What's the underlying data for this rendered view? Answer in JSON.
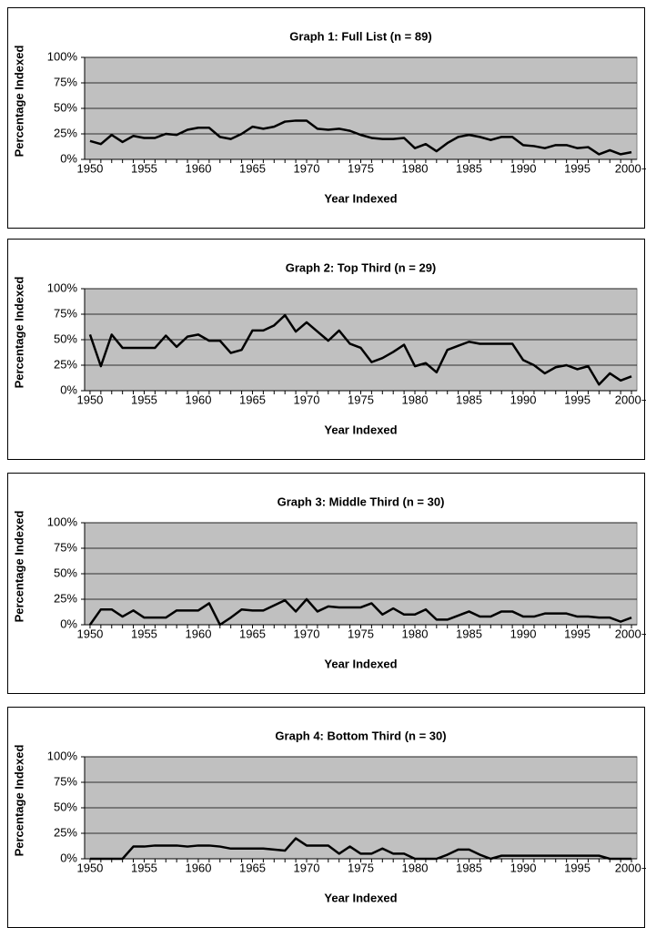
{
  "chart_data": [
    {
      "type": "line",
      "title": "Graph 1: Full List (n = 89)",
      "xlabel": "Year Indexed",
      "ylabel": "Percentage Indexed",
      "categories": [
        "1950",
        null,
        null,
        null,
        null,
        "1955",
        null,
        null,
        null,
        null,
        "1960",
        null,
        null,
        null,
        null,
        "1965",
        null,
        null,
        null,
        null,
        "1970",
        null,
        null,
        null,
        null,
        "1975",
        null,
        null,
        null,
        null,
        "1980",
        null,
        null,
        null,
        null,
        "1985",
        null,
        null,
        null,
        null,
        "1990",
        null,
        null,
        null,
        null,
        "1995",
        null,
        null,
        null,
        null,
        "2000+"
      ],
      "values": [
        18,
        15,
        24,
        17,
        23,
        21,
        21,
        25,
        24,
        29,
        31,
        31,
        22,
        20,
        25,
        32,
        30,
        32,
        37,
        38,
        38,
        30,
        29,
        30,
        28,
        24,
        21,
        20,
        20,
        21,
        11,
        15,
        8,
        16,
        22,
        24,
        22,
        19,
        22,
        22,
        14,
        13,
        11,
        14,
        14,
        11,
        12,
        5,
        9,
        5,
        7
      ],
      "color": "#000000",
      "ylim": [
        0,
        100
      ],
      "yticks": [
        {
          "value": 0,
          "label": "0%"
        },
        {
          "value": 25,
          "label": "25%"
        },
        {
          "value": 50,
          "label": "50%"
        },
        {
          "value": 75,
          "label": "75%"
        },
        {
          "value": 100,
          "label": "100%"
        }
      ],
      "grid": true
    },
    {
      "type": "line",
      "title": "Graph 2: Top Third (n = 29)",
      "xlabel": "Year Indexed",
      "ylabel": "Percentage Indexed",
      "categories": [
        "1950",
        null,
        null,
        null,
        null,
        "1955",
        null,
        null,
        null,
        null,
        "1960",
        null,
        null,
        null,
        null,
        "1965",
        null,
        null,
        null,
        null,
        "1970",
        null,
        null,
        null,
        null,
        "1975",
        null,
        null,
        null,
        null,
        "1980",
        null,
        null,
        null,
        null,
        "1985",
        null,
        null,
        null,
        null,
        "1990",
        null,
        null,
        null,
        null,
        "1995",
        null,
        null,
        null,
        null,
        "2000+"
      ],
      "values": [
        55,
        24,
        55,
        42,
        42,
        42,
        42,
        54,
        43,
        53,
        55,
        49,
        49,
        37,
        40,
        59,
        59,
        64,
        74,
        58,
        67,
        58,
        49,
        59,
        46,
        42,
        28,
        32,
        38,
        45,
        24,
        27,
        18,
        40,
        44,
        48,
        46,
        46,
        46,
        46,
        30,
        25,
        17,
        23,
        25,
        21,
        24,
        6,
        17,
        10,
        14
      ],
      "color": "#000000",
      "ylim": [
        0,
        100
      ],
      "yticks": [
        {
          "value": 0,
          "label": "0%"
        },
        {
          "value": 25,
          "label": "25%"
        },
        {
          "value": 50,
          "label": "50%"
        },
        {
          "value": 75,
          "label": "75%"
        },
        {
          "value": 100,
          "label": "100%"
        }
      ],
      "grid": true
    },
    {
      "type": "line",
      "title": "Graph 3: Middle Third (n = 30)",
      "xlabel": "Year Indexed",
      "ylabel": "Percentage Indexed",
      "categories": [
        "1950",
        null,
        null,
        null,
        null,
        "1955",
        null,
        null,
        null,
        null,
        "1960",
        null,
        null,
        null,
        null,
        "1965",
        null,
        null,
        null,
        null,
        "1970",
        null,
        null,
        null,
        null,
        "1975",
        null,
        null,
        null,
        null,
        "1980",
        null,
        null,
        null,
        null,
        "1985",
        null,
        null,
        null,
        null,
        "1990",
        null,
        null,
        null,
        null,
        "1995",
        null,
        null,
        null,
        null,
        "2000+"
      ],
      "values": [
        0,
        15,
        15,
        8,
        14,
        7,
        7,
        7,
        14,
        14,
        14,
        21,
        0,
        7,
        15,
        14,
        14,
        19,
        24,
        13,
        25,
        13,
        18,
        17,
        17,
        17,
        21,
        10,
        16,
        10,
        10,
        15,
        5,
        5,
        9,
        13,
        8,
        8,
        13,
        13,
        8,
        8,
        11,
        11,
        11,
        8,
        8,
        7,
        7,
        3,
        7
      ],
      "color": "#000000",
      "ylim": [
        0,
        100
      ],
      "yticks": [
        {
          "value": 0,
          "label": "0%"
        },
        {
          "value": 25,
          "label": "25%"
        },
        {
          "value": 50,
          "label": "50%"
        },
        {
          "value": 75,
          "label": "75%"
        },
        {
          "value": 100,
          "label": "100%"
        }
      ],
      "grid": true
    },
    {
      "type": "line",
      "title": "Graph 4: Bottom Third (n = 30)",
      "xlabel": "Year Indexed",
      "ylabel": "Percentage Indexed",
      "categories": [
        "1950",
        null,
        null,
        null,
        null,
        "1955",
        null,
        null,
        null,
        null,
        "1960",
        null,
        null,
        null,
        null,
        "1965",
        null,
        null,
        null,
        null,
        "1970",
        null,
        null,
        null,
        null,
        "1975",
        null,
        null,
        null,
        null,
        "1980",
        null,
        null,
        null,
        null,
        "1985",
        null,
        null,
        null,
        null,
        "1990",
        null,
        null,
        null,
        null,
        "1995",
        null,
        null,
        null,
        null,
        "2000+"
      ],
      "values": [
        0,
        0,
        0,
        0,
        12,
        12,
        13,
        13,
        13,
        12,
        13,
        13,
        12,
        10,
        10,
        10,
        10,
        9,
        8,
        20,
        13,
        13,
        13,
        5,
        12,
        5,
        5,
        10,
        5,
        5,
        0,
        0,
        0,
        4,
        9,
        9,
        4,
        0,
        3,
        3,
        3,
        3,
        3,
        3,
        3,
        3,
        3,
        3,
        0,
        0,
        0
      ],
      "color": "#000000",
      "ylim": [
        0,
        100
      ],
      "yticks": [
        {
          "value": 0,
          "label": "0%"
        },
        {
          "value": 25,
          "label": "25%"
        },
        {
          "value": 50,
          "label": "50%"
        },
        {
          "value": 75,
          "label": "75%"
        },
        {
          "value": 100,
          "label": "100%"
        }
      ],
      "grid": true
    }
  ]
}
